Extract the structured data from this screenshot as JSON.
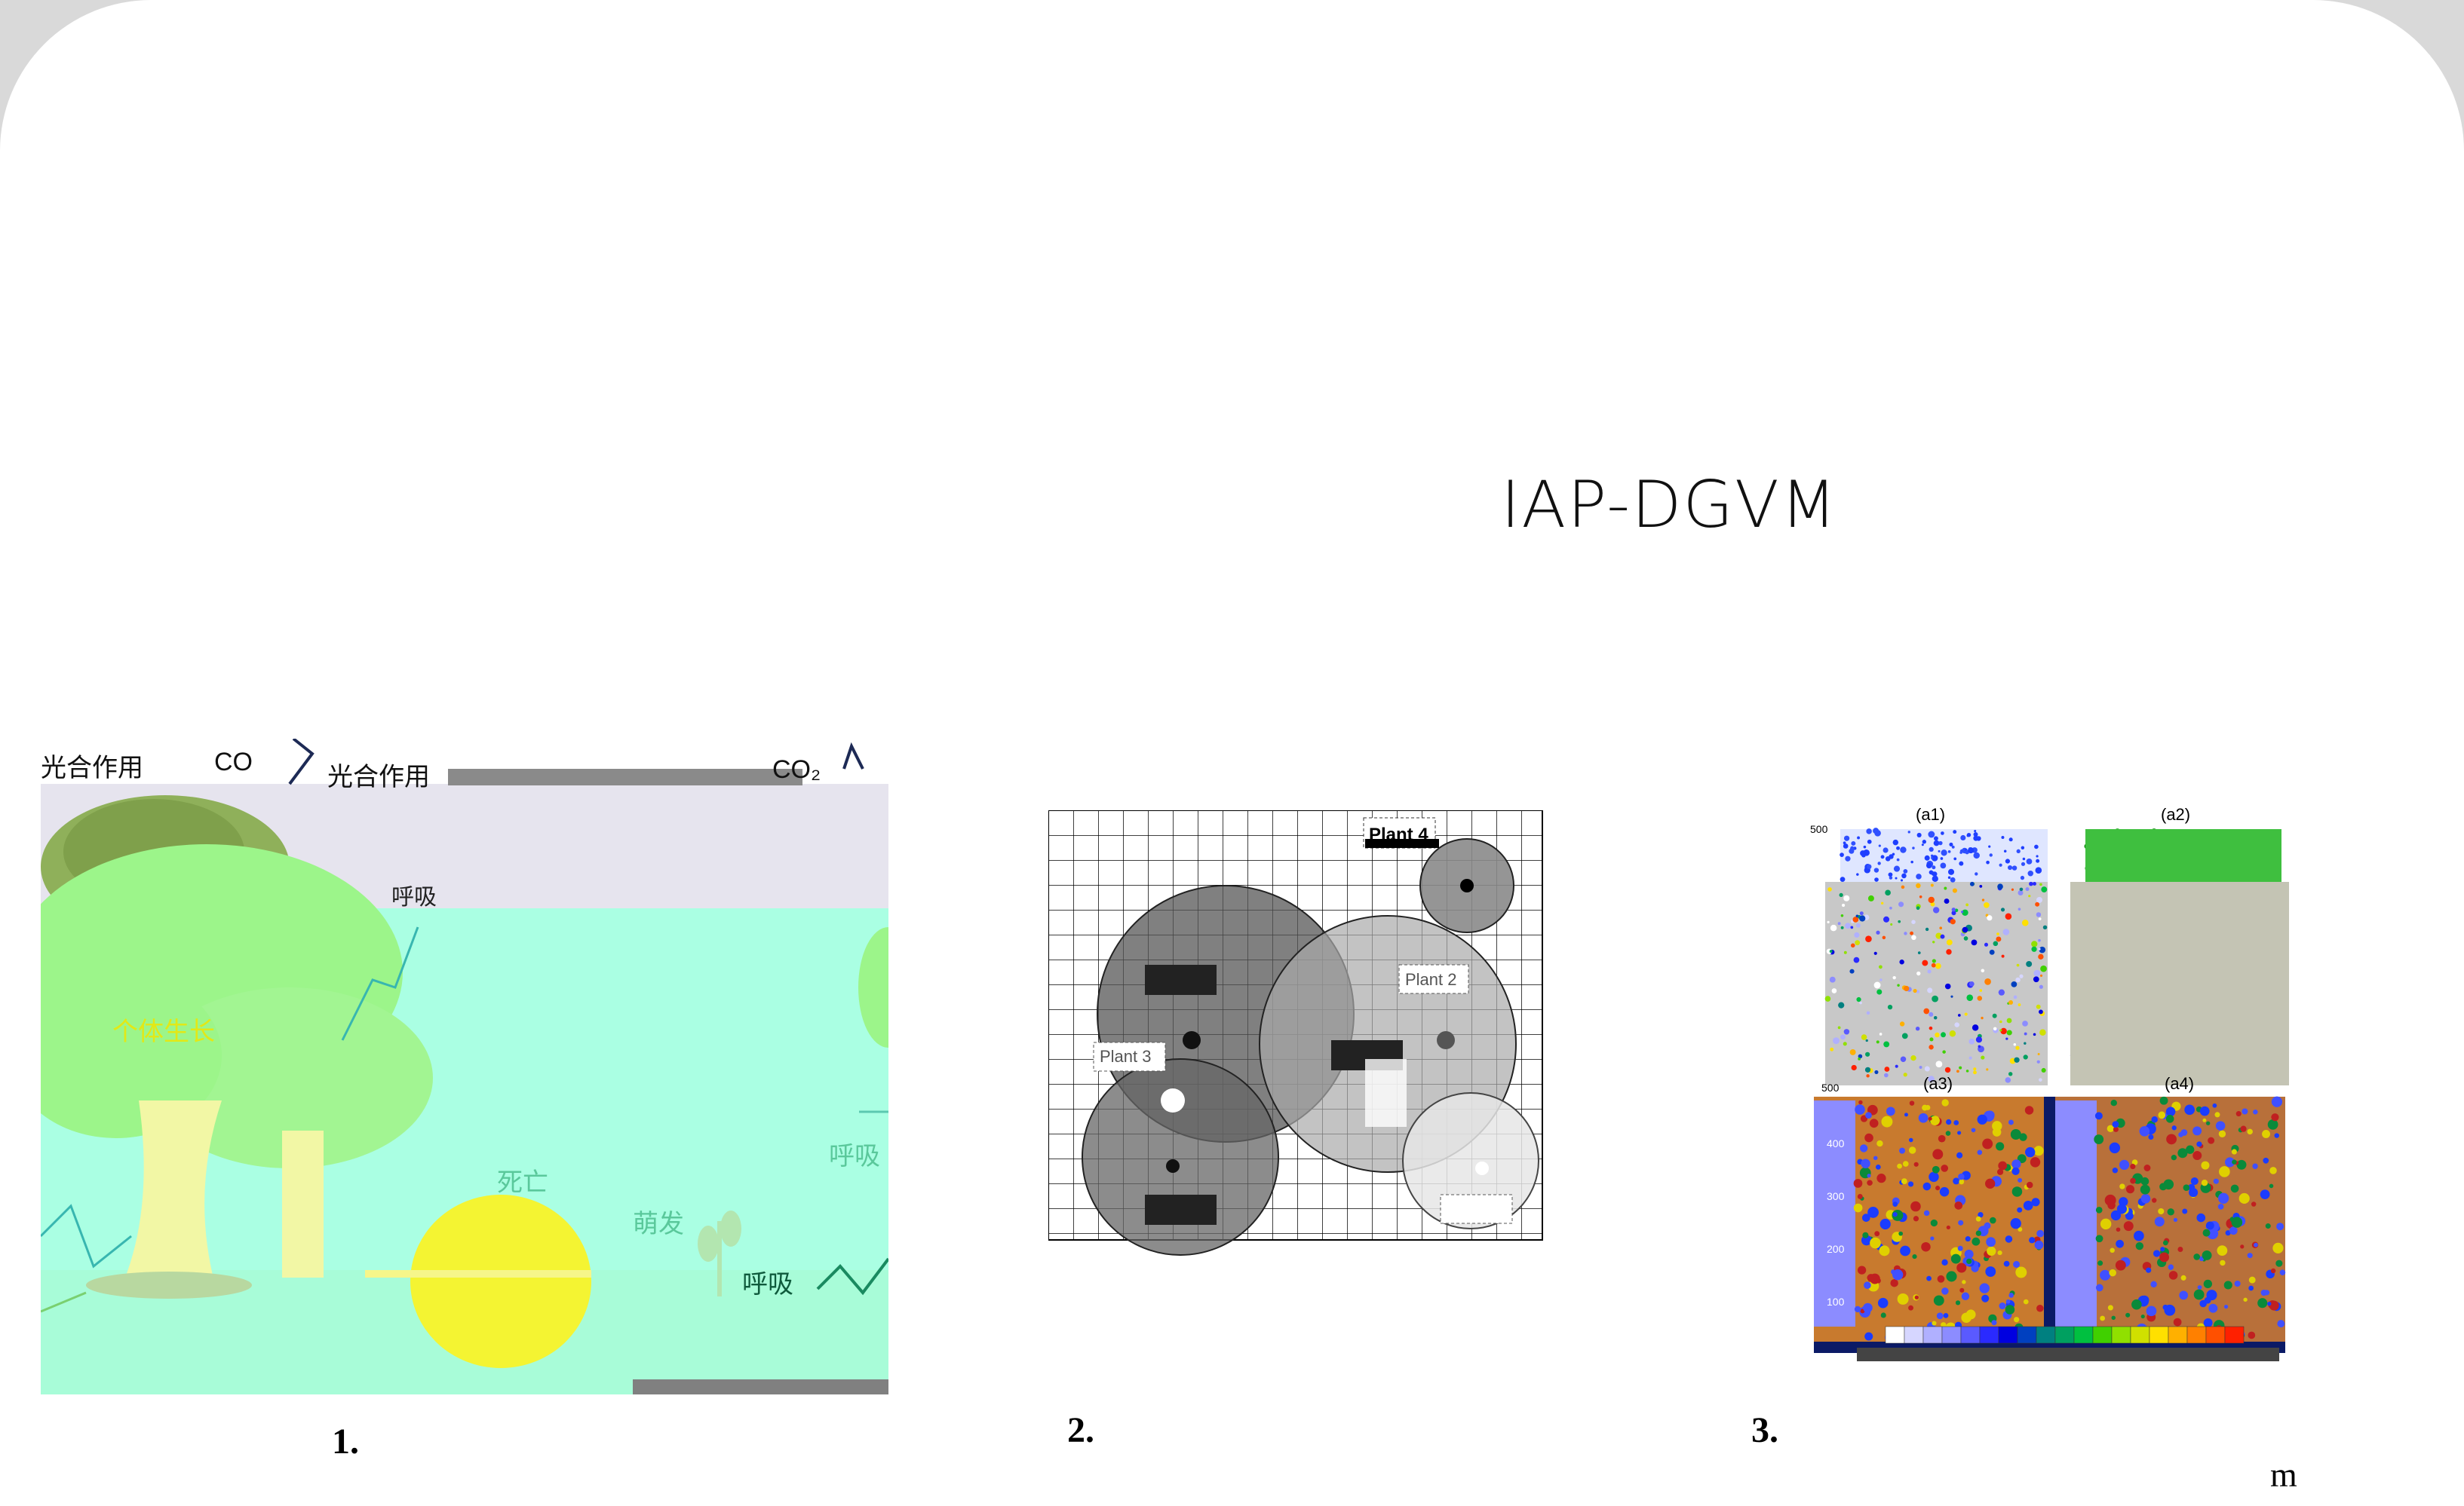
{
  "slide": {
    "title": "IAP-DGVM",
    "captions": [
      "1.",
      "2.",
      "3."
    ],
    "unit": "m"
  },
  "panel1": {
    "labels": {
      "photosynthesis_left": "光合作用",
      "co2_left": "CO",
      "photosynthesis_mid": "光合作用",
      "co2_right": "CO₂",
      "respiration_top": "呼吸",
      "individual_growth": "个体生长",
      "death": "死亡",
      "germination": "萌发",
      "respiration_right": "呼吸",
      "respiration_bottom": "呼吸"
    }
  },
  "panel2": {
    "labels": {
      "plant4": "Plant 4",
      "plant2": "Plant 2",
      "plant3": "Plant 3"
    }
  },
  "panel3": {
    "subplots": [
      "(a1)",
      "(a2)",
      "(a3)",
      "(a4)"
    ],
    "ticks_top": [
      "500"
    ],
    "ticks_bottom": [
      "500",
      "400",
      "300",
      "200",
      "100"
    ]
  },
  "colors": {
    "colorbar": [
      "#ffffff",
      "#d6d6ff",
      "#b0b0ff",
      "#8c8cff",
      "#5a5aff",
      "#2a2aff",
      "#0000e0",
      "#0040c0",
      "#008080",
      "#00a060",
      "#00c040",
      "#40d000",
      "#90e000",
      "#d0e000",
      "#ffe000",
      "#ffb000",
      "#ff8000",
      "#ff5000",
      "#ff2000"
    ]
  }
}
